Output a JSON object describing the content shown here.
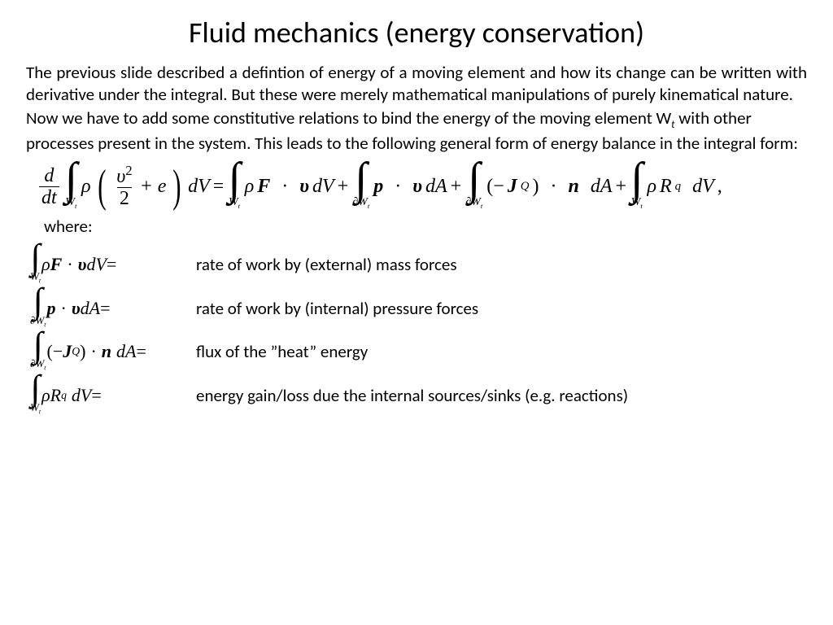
{
  "title": "Fluid mechanics (energy conservation)",
  "paragraph1": "The previous slide described a defintion of energy  of a moving element and how its change can be written with derivative under the integral. But these were merely mathematical manipulations  of purely kinematical nature.",
  "paragraph2_a": "Now we have to add some constitutive relations to bind the energy of the moving element W",
  "paragraph2_sub": "t",
  "paragraph2_b": " with other processes present in the system. This leads to the following general form of energy balance in the integral form:",
  "where_label": "where:",
  "main_eq": {
    "lhs_deriv_num": "d",
    "lhs_deriv_den": "dt",
    "domain_vol": "W",
    "domain_sub": "t",
    "domain_surf_prefix": "∂",
    "rho": "ρ",
    "vel_sq_num_base": "υ",
    "vel_sq_exp": "2",
    "vel_sq_den": "2",
    "plus_e": "+ e",
    "dV": "dV",
    "dA": "dA",
    "eq": " = ",
    "plus": " + ",
    "comma": " ,",
    "F": "F",
    "dot": "·",
    "vel": "υ",
    "p": "p",
    "minusJ_open": "(−",
    "J": "J",
    "Q": "Q",
    "close": ")",
    "n": "n",
    "R": "R",
    "q": "q"
  },
  "defs": [
    {
      "desc": "rate of work by (external) mass forces"
    },
    {
      "desc": "rate of work by (internal) pressure forces"
    },
    {
      "desc": "flux of the ”heat” energy"
    },
    {
      "desc": "energy gain/loss due the internal sources/sinks (e.g. reactions)"
    }
  ],
  "style": {
    "background": "#ffffff",
    "text_color": "#000000",
    "title_fontsize": 36,
    "body_fontsize": 21,
    "eq_fontsize": 24,
    "eq_font": "Times New Roman",
    "body_font": "Calibri"
  }
}
